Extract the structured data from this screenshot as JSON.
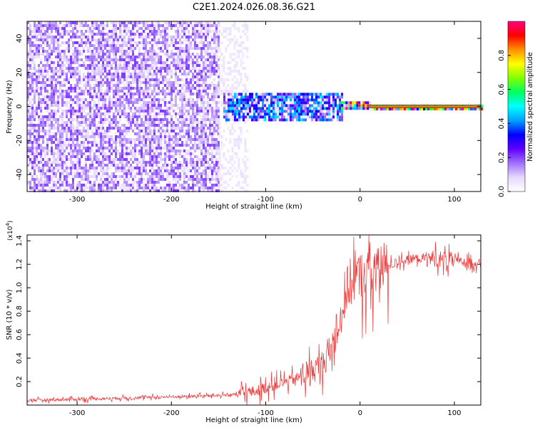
{
  "title": "C2E1.2024.026.08.36.G21",
  "chart_data": [
    {
      "type": "heatmap",
      "xlabel": "Height of straight line (km)",
      "ylabel": "Frequency (Hz)",
      "xlim": [
        -353,
        128
      ],
      "ylim": [
        -50,
        50
      ],
      "xticks": [
        -300,
        -200,
        -100,
        0,
        100
      ],
      "yticks": [
        -40,
        -20,
        0,
        20,
        40
      ],
      "colorbar": {
        "label": "Normalized spectral amplitude",
        "range": [
          0.0,
          1.0
        ],
        "ticks": [
          0.0,
          0.2,
          0.4,
          0.6,
          0.8
        ],
        "colors": [
          "#ffffff",
          "#e6d8ff",
          "#a070ff",
          "#6000ff",
          "#0000ff",
          "#00a0ff",
          "#00ffff",
          "#00ff60",
          "#80ff00",
          "#ffff00",
          "#ff9000",
          "#ff0000",
          "#ff0080"
        ]
      },
      "regions": [
        {
          "x_range": [
            -353,
            -150
          ],
          "freq_range": [
            -50,
            50
          ],
          "amplitude": 0.15
        },
        {
          "x_range": [
            -150,
            -120
          ],
          "freq_range": [
            -50,
            50
          ],
          "amplitude": 0.05
        },
        {
          "x_range": [
            -145,
            -20
          ],
          "freq_range": [
            -8,
            8
          ],
          "amplitude": 0.35
        },
        {
          "x_range": [
            -20,
            10
          ],
          "freq_range": [
            -2,
            3
          ],
          "amplitude": 0.8
        },
        {
          "x_range": [
            10,
            128
          ],
          "freq_range": [
            -1,
            1
          ],
          "amplitude": 0.85
        }
      ]
    },
    {
      "type": "line",
      "xlabel": "Height of straight line (km)",
      "ylabel": "SNR (10 * v/v)",
      "y_multiplier": "(x10",
      "y_multiplier_exp": "4",
      "y_multiplier_close": ")",
      "xlim": [
        -353,
        128
      ],
      "ylim": [
        0.0,
        1.45
      ],
      "xticks": [
        -300,
        -200,
        -100,
        0,
        100
      ],
      "yticks": [
        0.2,
        0.4,
        0.6,
        0.8,
        1.0,
        1.2,
        1.4
      ],
      "color": "#ee3333",
      "series": [
        {
          "x": [
            -353,
            -300,
            -250,
            -200,
            -160,
            -130,
            -110,
            -90,
            -70,
            -55,
            -45,
            -35,
            -28,
            -22,
            -16,
            -10,
            -5,
            0,
            10,
            20,
            30,
            40,
            50,
            60,
            70,
            80,
            90,
            100,
            110,
            128
          ],
          "y": [
            0.04,
            0.05,
            0.06,
            0.07,
            0.08,
            0.09,
            0.12,
            0.17,
            0.22,
            0.27,
            0.32,
            0.4,
            0.52,
            0.7,
            0.95,
            1.05,
            1.08,
            1.1,
            1.12,
            1.14,
            1.18,
            1.22,
            1.24,
            1.25,
            1.25,
            1.25,
            1.24,
            1.23,
            1.22,
            1.21
          ]
        }
      ]
    }
  ]
}
